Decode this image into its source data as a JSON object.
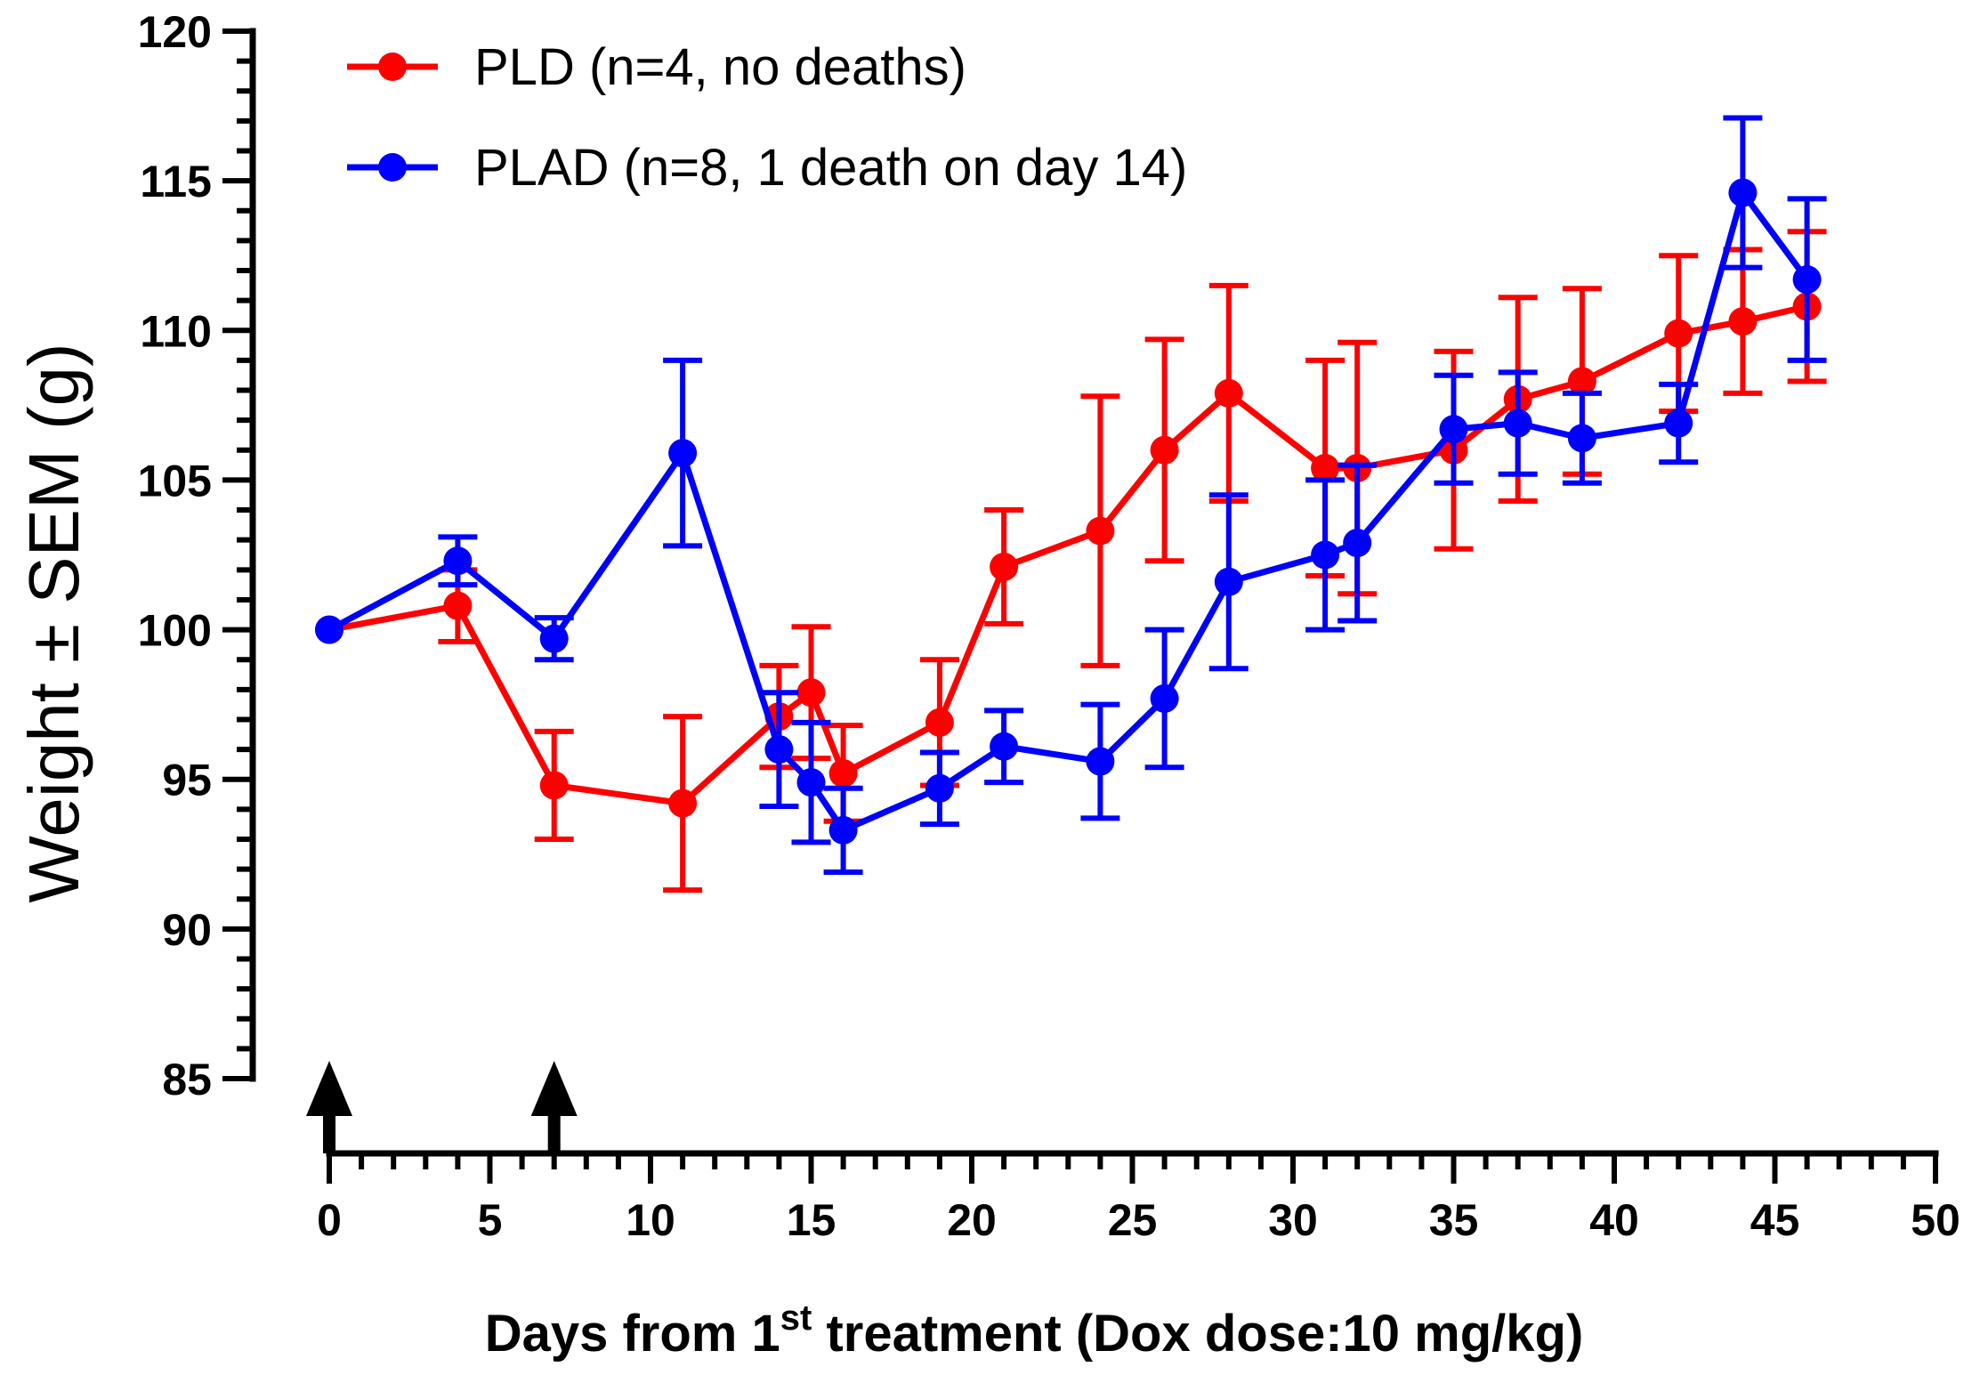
{
  "chart_data": {
    "type": "line",
    "title": "",
    "ylabel": "Weight ± SEM (g)",
    "xlabel": {
      "prefix": "Days from 1",
      "superscript": "st",
      "suffix": " treatment (Dox dose:10 mg/kg)"
    },
    "xlim": [
      0,
      50
    ],
    "ylim": [
      85,
      120
    ],
    "x_ticks": [
      0,
      5,
      10,
      15,
      20,
      25,
      30,
      35,
      40,
      45,
      50
    ],
    "y_ticks": [
      85,
      90,
      95,
      100,
      105,
      110,
      115,
      120
    ],
    "treatment_days": [
      0,
      7
    ],
    "legend_position": "top-left",
    "series": [
      {
        "name": "PLD (n=4, no deaths)",
        "color": "#ff0000",
        "x": [
          0,
          4,
          7,
          11,
          14,
          15,
          16,
          19,
          21,
          24,
          26,
          28,
          31,
          32,
          35,
          37,
          39,
          42,
          44,
          46
        ],
        "y": [
          100.0,
          100.8,
          94.8,
          94.2,
          97.1,
          97.9,
          95.2,
          96.9,
          102.1,
          103.3,
          106.0,
          107.9,
          105.4,
          105.4,
          106.0,
          107.7,
          108.3,
          109.9,
          110.3,
          110.8
        ],
        "sem": [
          0,
          1.2,
          1.8,
          2.9,
          1.7,
          2.2,
          1.6,
          2.1,
          1.9,
          4.5,
          3.7,
          3.6,
          3.6,
          4.2,
          3.3,
          3.4,
          3.1,
          2.6,
          2.4,
          2.5
        ]
      },
      {
        "name": "PLAD (n=8, 1 death on day 14)",
        "color": "#0000ff",
        "x": [
          0,
          4,
          7,
          11,
          14,
          15,
          16,
          19,
          21,
          24,
          26,
          28,
          31,
          32,
          35,
          37,
          39,
          42,
          44,
          46
        ],
        "y": [
          100.0,
          102.3,
          99.7,
          105.9,
          96.0,
          94.9,
          93.3,
          94.7,
          96.1,
          95.6,
          97.7,
          101.6,
          102.5,
          102.9,
          106.7,
          106.9,
          106.4,
          106.9,
          114.6,
          111.7
        ],
        "sem": [
          0,
          0.8,
          0.7,
          3.1,
          1.9,
          2.0,
          1.4,
          1.2,
          1.2,
          1.9,
          2.3,
          2.9,
          2.5,
          2.6,
          1.8,
          1.7,
          1.5,
          1.3,
          2.5,
          2.7
        ]
      }
    ]
  }
}
